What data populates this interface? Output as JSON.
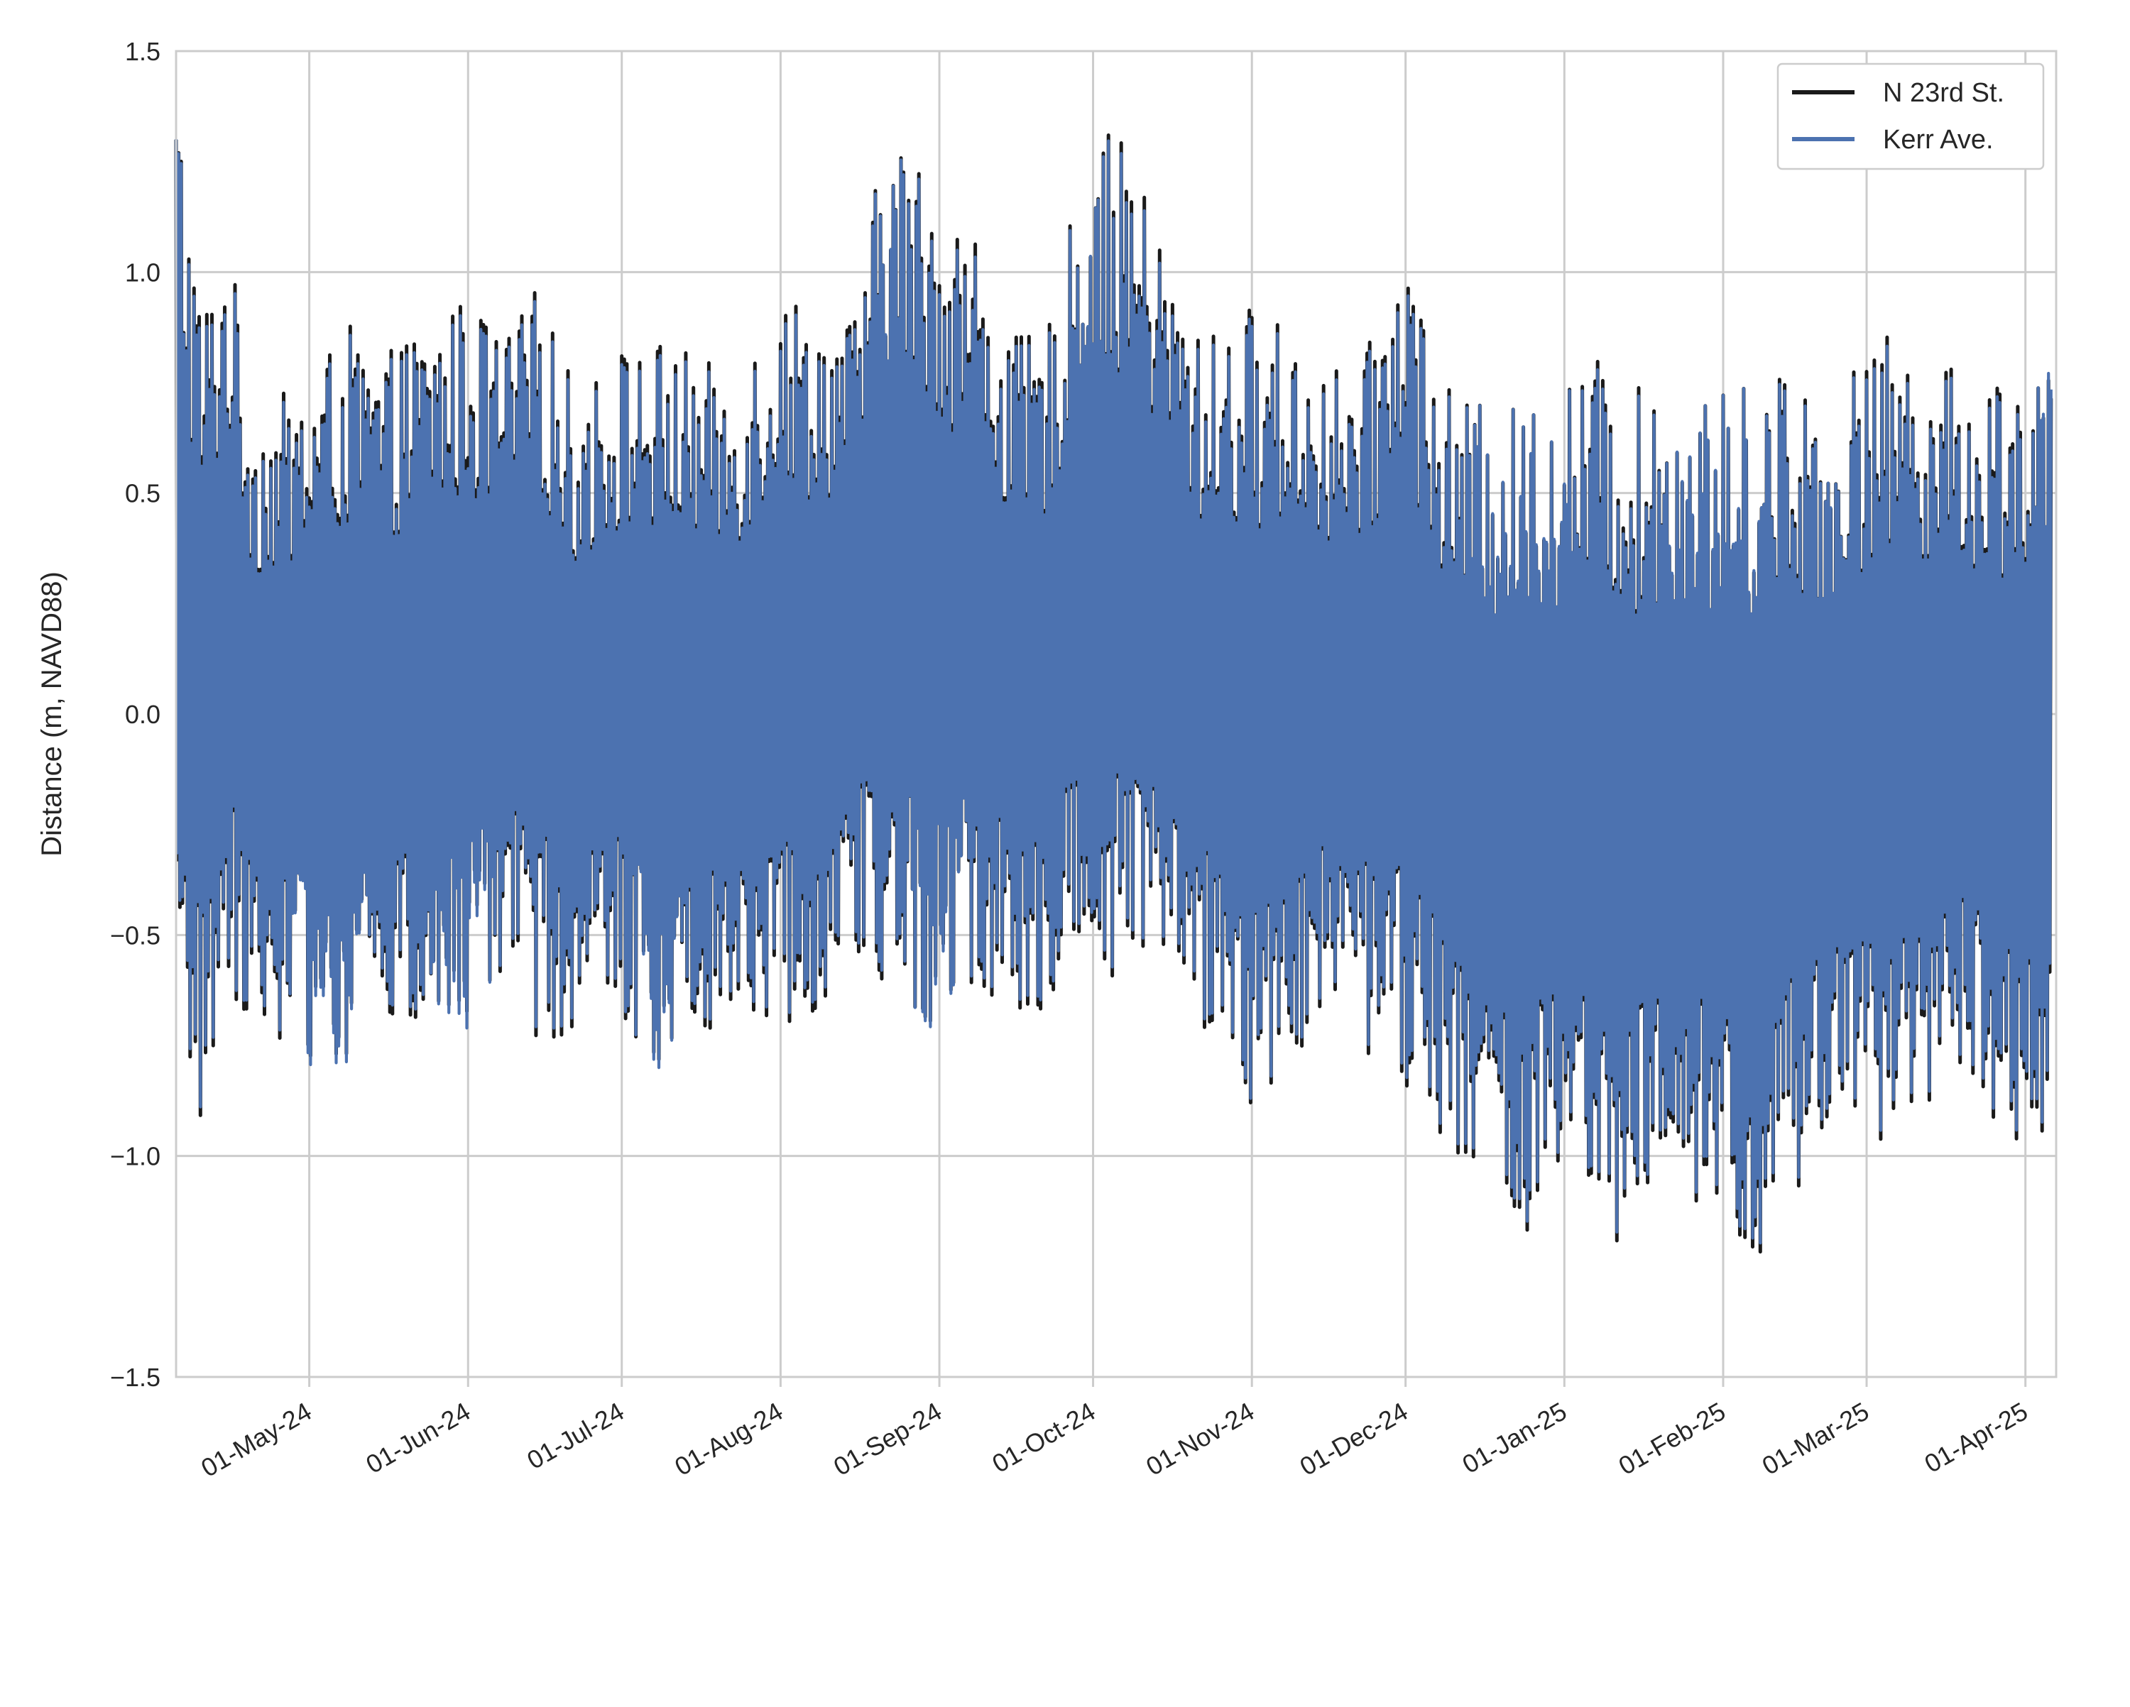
{
  "chart_data": {
    "type": "line",
    "title": "",
    "xlabel": "",
    "ylabel": "Distance (m, NAVD88)",
    "ylim": [
      -1.5,
      1.5
    ],
    "xlim": [
      "2024-04-05",
      "2025-04-07"
    ],
    "grid": true,
    "legend": {
      "placement": "top-right"
    },
    "y_ticks": [
      {
        "value": 1.5,
        "label": "1.5"
      },
      {
        "value": 1.0,
        "label": "1.0"
      },
      {
        "value": 0.5,
        "label": "0.5"
      },
      {
        "value": 0.0,
        "label": "0.0"
      },
      {
        "value": -0.5,
        "label": "−0.5"
      },
      {
        "value": -1.0,
        "label": "−1.0"
      },
      {
        "value": -1.5,
        "label": "−1.5"
      }
    ],
    "x_ticks": [
      {
        "date": "2024-05-01",
        "label": "01-May-24"
      },
      {
        "date": "2024-06-01",
        "label": "01-Jun-24"
      },
      {
        "date": "2024-07-01",
        "label": "01-Jul-24"
      },
      {
        "date": "2024-08-01",
        "label": "01-Aug-24"
      },
      {
        "date": "2024-09-01",
        "label": "01-Sep-24"
      },
      {
        "date": "2024-10-01",
        "label": "01-Oct-24"
      },
      {
        "date": "2024-11-01",
        "label": "01-Nov-24"
      },
      {
        "date": "2024-12-01",
        "label": "01-Dec-24"
      },
      {
        "date": "2025-01-01",
        "label": "01-Jan-25"
      },
      {
        "date": "2025-02-01",
        "label": "01-Feb-25"
      },
      {
        "date": "2025-03-01",
        "label": "01-Mar-25"
      },
      {
        "date": "2025-04-01",
        "label": "01-Apr-25"
      }
    ],
    "series": [
      {
        "name": "N 23rd St.",
        "color": "#1a1a1a",
        "x": [
          "2024-04-05",
          "2024-04-10",
          "2024-04-15",
          "2024-04-20",
          "2024-04-25",
          "2024-05-01",
          "2024-05-08",
          "2024-05-15",
          "2024-05-22",
          "2024-06-01",
          "2024-06-08",
          "2024-06-15",
          "2024-06-22",
          "2024-07-01",
          "2024-07-08",
          "2024-07-15",
          "2024-07-22",
          "2024-08-01",
          "2024-08-08",
          "2024-08-15",
          "2024-08-22",
          "2024-09-01",
          "2024-09-08",
          "2024-09-15",
          "2024-09-22",
          "2024-10-01",
          "2024-10-08",
          "2024-10-15",
          "2024-10-22",
          "2024-11-01",
          "2024-11-08",
          "2024-11-15",
          "2024-11-22",
          "2024-12-01",
          "2024-12-08",
          "2024-12-15",
          "2024-12-22",
          "2025-01-01",
          "2025-01-08",
          "2025-01-15",
          "2025-01-22",
          "2025-02-01",
          "2025-02-08",
          "2025-02-15",
          "2025-02-22",
          "2025-03-01",
          "2025-03-08",
          "2025-03-15",
          "2025-03-22",
          "2025-04-01",
          "2025-04-06"
        ],
        "max": [
          1.48,
          0.93,
          1.1,
          0.7,
          0.72,
          0.76,
          0.89,
          0.8,
          0.88,
          0.95,
          0.85,
          0.98,
          0.73,
          0.84,
          0.85,
          0.82,
          0.76,
          0.98,
          0.92,
          0.9,
          1.35,
          1.2,
          1.1,
          0.85,
          0.87,
          1.34,
          1.28,
          1.05,
          0.85,
          0.93,
          0.88,
          0.8,
          0.76,
          1.13,
          0.75,
          0.7,
          0.7,
          0.76,
          0.82,
          0.74,
          0.76,
          0.73,
          0.78,
          0.8,
          0.69,
          0.85,
          0.86,
          0.8,
          0.76,
          0.81,
          0.78
        ],
        "min": [
          -0.82,
          -0.95,
          -0.62,
          -0.7,
          -0.74,
          -0.78,
          -0.8,
          -0.68,
          -0.76,
          -0.72,
          -0.6,
          -0.75,
          -0.72,
          -0.7,
          -0.8,
          -0.72,
          -0.7,
          -0.72,
          -0.67,
          -0.55,
          -0.68,
          -0.72,
          -0.65,
          -0.7,
          -0.66,
          -0.62,
          -0.58,
          -0.6,
          -0.7,
          -0.92,
          -0.78,
          -0.72,
          -0.75,
          -0.9,
          -0.95,
          -1.05,
          -1.22,
          -1.1,
          -1.26,
          -1.18,
          -1.1,
          -1.22,
          -1.25,
          -1.12,
          -1.0,
          -1.02,
          -0.9,
          -0.88,
          -0.85,
          -1.02,
          -0.95
        ]
      },
      {
        "name": "Kerr Ave.",
        "color": "#4c72b0",
        "x": [
          "2024-04-05",
          "2024-04-10",
          "2024-04-15",
          "2024-04-20",
          "2024-04-25",
          "2024-05-01",
          "2024-05-08",
          "2024-05-15",
          "2024-05-22",
          "2024-06-01",
          "2024-06-08",
          "2024-06-15",
          "2024-06-22",
          "2024-07-01",
          "2024-07-08",
          "2024-07-15",
          "2024-07-22",
          "2024-08-01",
          "2024-08-08",
          "2024-08-15",
          "2024-08-22",
          "2024-09-01",
          "2024-09-08",
          "2024-09-15",
          "2024-09-22",
          "2024-10-01",
          "2024-10-08",
          "2024-10-15",
          "2024-10-22",
          "2024-11-01",
          "2024-11-08",
          "2024-11-15",
          "2024-11-22",
          "2024-12-01",
          "2024-12-08",
          "2024-12-15",
          "2024-12-22",
          "2025-01-01",
          "2025-01-08",
          "2025-01-15",
          "2025-01-22",
          "2025-02-01",
          "2025-02-08",
          "2025-02-15",
          "2025-02-22",
          "2025-03-01",
          "2025-03-08",
          "2025-03-15",
          "2025-03-22",
          "2025-04-01",
          "2025-04-06"
        ],
        "max": [
          1.48,
          0.9,
          1.08,
          0.68,
          0.7,
          0.74,
          0.87,
          0.78,
          0.86,
          0.93,
          0.83,
          0.96,
          0.71,
          0.82,
          0.83,
          0.8,
          0.74,
          0.96,
          0.9,
          0.88,
          1.35,
          1.18,
          1.07,
          0.83,
          0.85,
          1.34,
          1.25,
          1.02,
          0.83,
          0.91,
          0.86,
          0.78,
          0.74,
          1.11,
          0.73,
          0.7,
          0.7,
          0.76,
          0.8,
          0.72,
          0.76,
          0.73,
          0.78,
          0.78,
          0.69,
          0.83,
          0.84,
          0.78,
          0.74,
          0.79,
          0.8
        ],
        "min": [
          -0.8,
          -0.93,
          -0.6,
          -0.68,
          -0.72,
          -0.8,
          -0.82,
          -0.66,
          -0.74,
          -0.76,
          -0.58,
          -0.73,
          -0.7,
          -0.68,
          -0.82,
          -0.7,
          -0.68,
          -0.7,
          -0.65,
          -0.53,
          -0.66,
          -0.74,
          -0.63,
          -0.68,
          -0.64,
          -0.6,
          -0.56,
          -0.58,
          -0.68,
          -0.91,
          -0.76,
          -0.7,
          -0.73,
          -0.88,
          -0.93,
          -1.03,
          -1.2,
          -1.08,
          -1.24,
          -1.16,
          -1.08,
          -1.2,
          -1.23,
          -1.1,
          -0.98,
          -1.0,
          -0.88,
          -0.86,
          -0.83,
          -1.0,
          -0.93
        ]
      }
    ]
  }
}
